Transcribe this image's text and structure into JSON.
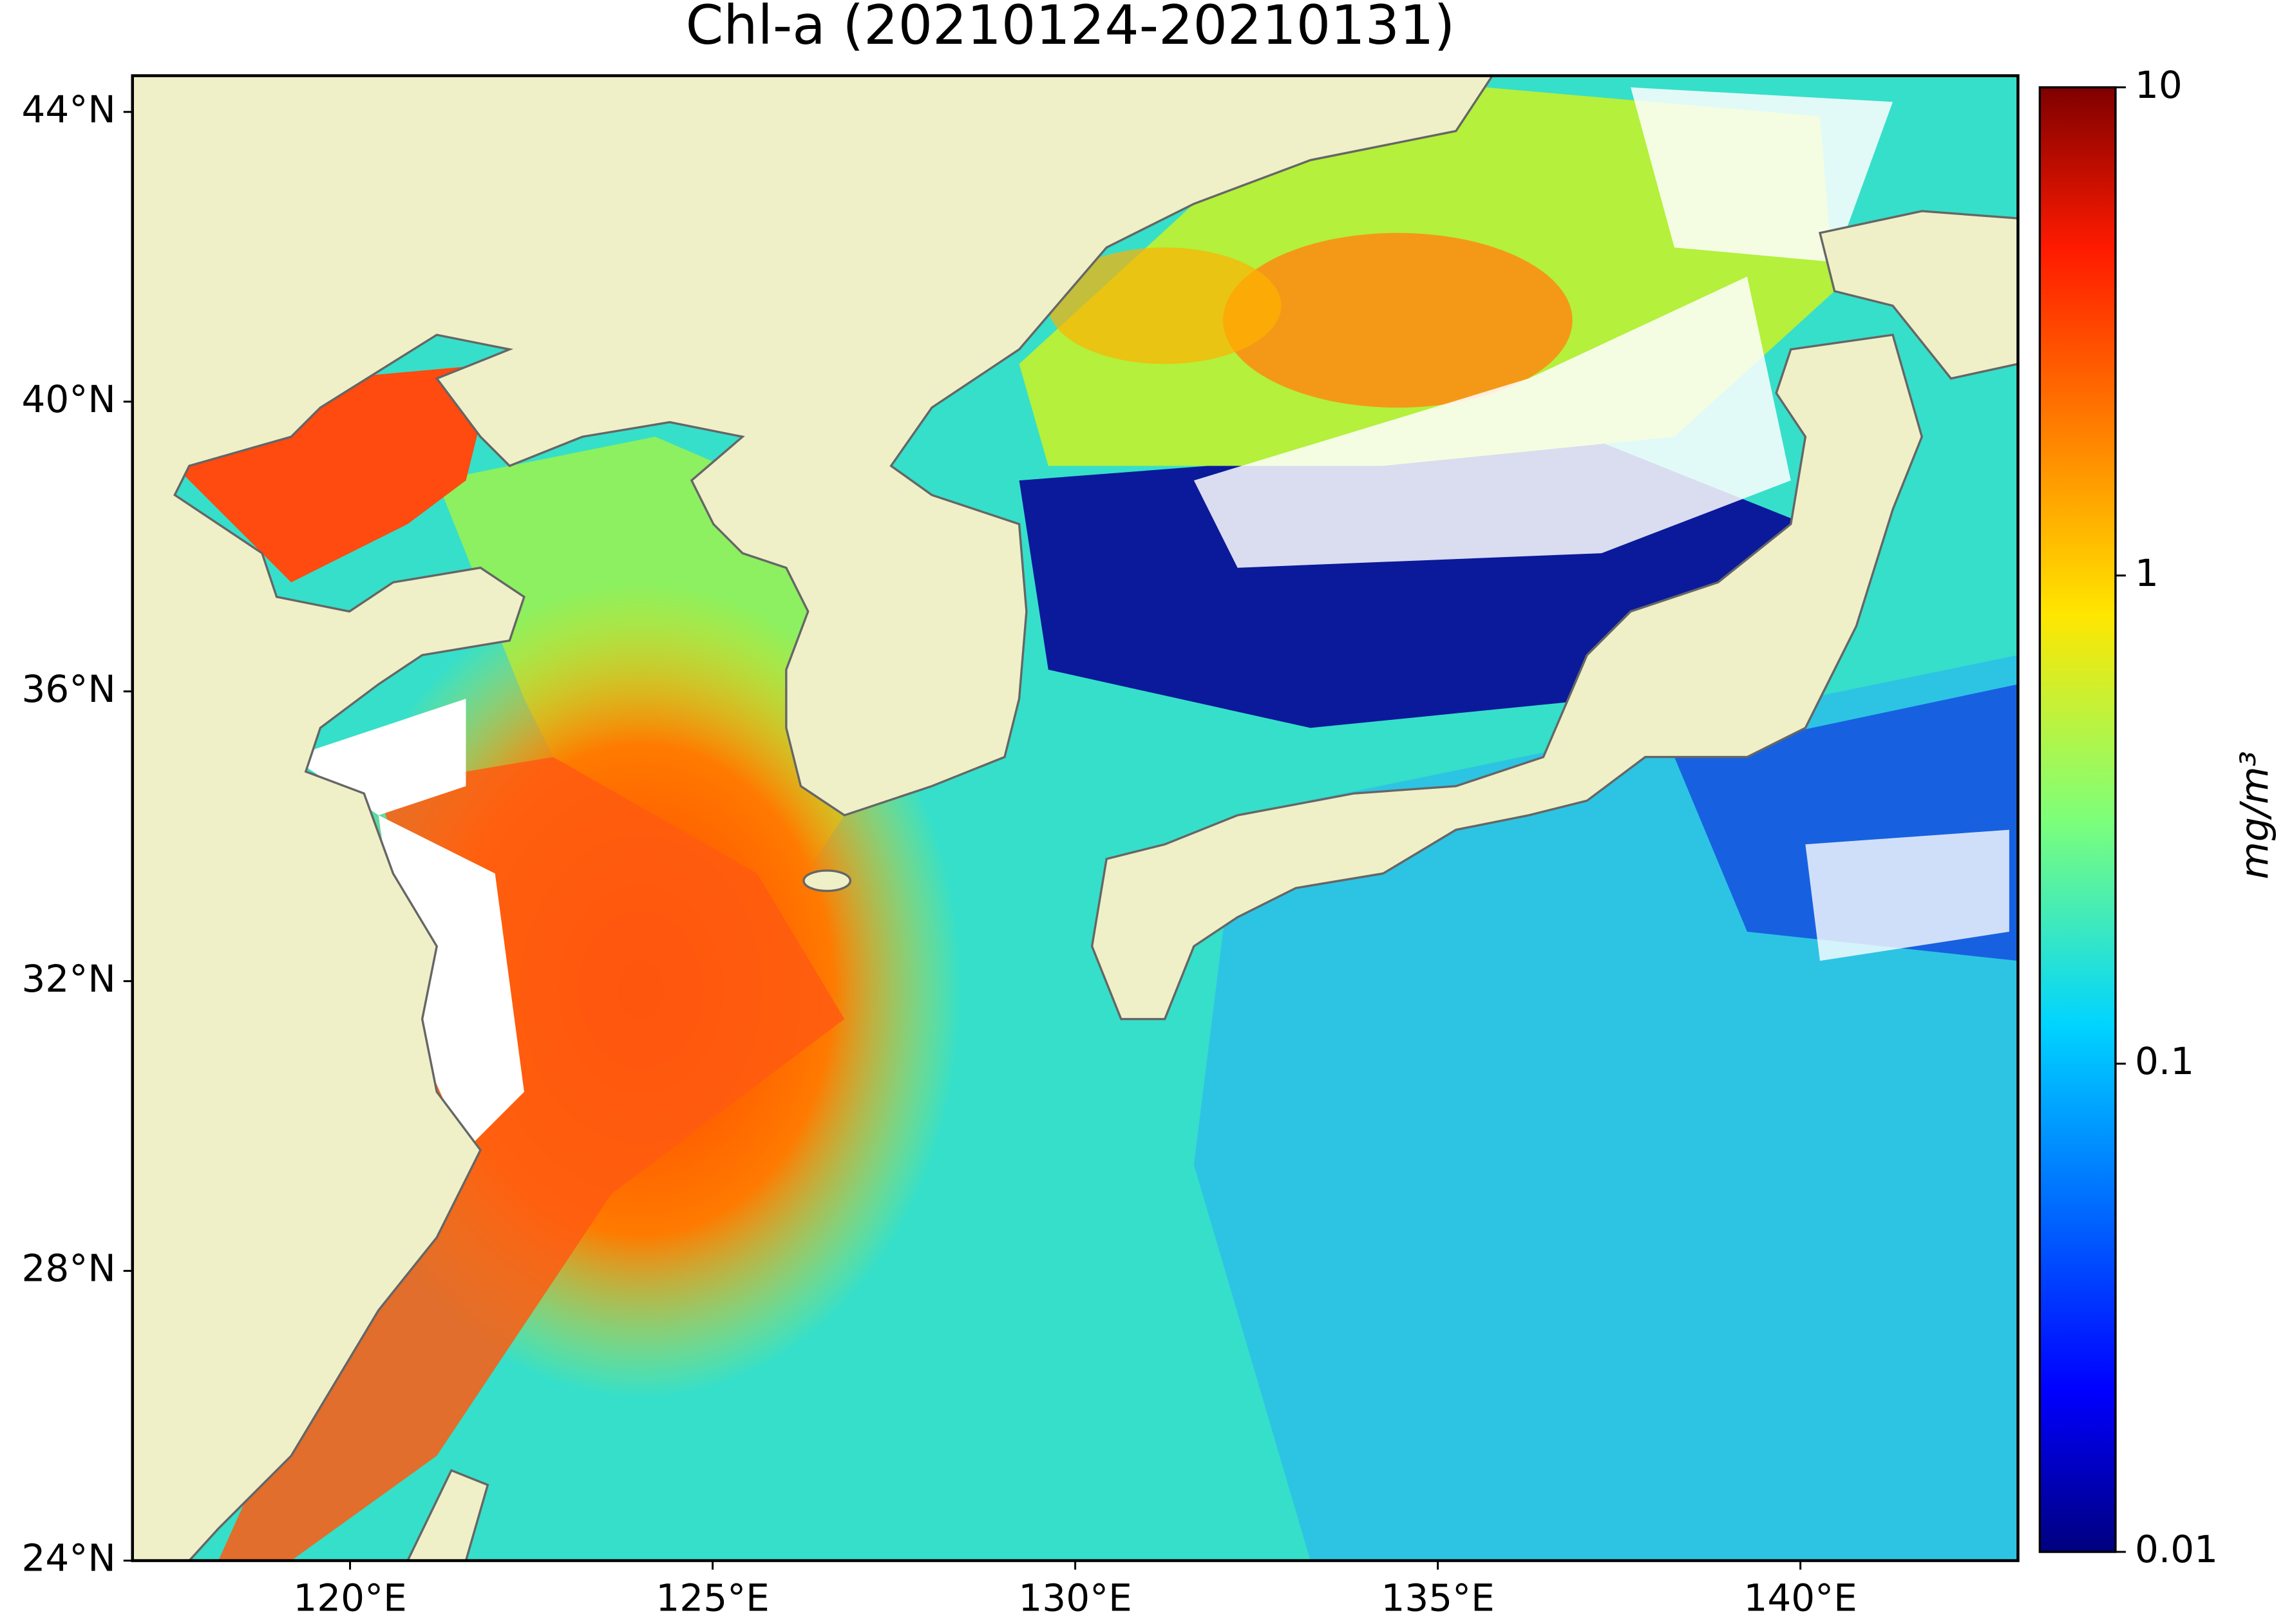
{
  "chart_data": {
    "type": "map",
    "title": "Chl-a (20210124-20210131)",
    "xlim": [
      117,
      143
    ],
    "ylim": [
      24,
      44.5
    ],
    "xticks": [
      {
        "value": 120,
        "label": "120°E"
      },
      {
        "value": 125,
        "label": "125°E"
      },
      {
        "value": 130,
        "label": "130°E"
      },
      {
        "value": 135,
        "label": "135°E"
      },
      {
        "value": 140,
        "label": "140°E"
      }
    ],
    "yticks": [
      {
        "value": 24,
        "label": "24°N"
      },
      {
        "value": 28,
        "label": "28°N"
      },
      {
        "value": 32,
        "label": "32°N"
      },
      {
        "value": 36,
        "label": "36°N"
      },
      {
        "value": 40,
        "label": "40°N"
      },
      {
        "value": 44,
        "label": "44°N"
      }
    ],
    "colorbar": {
      "label": "mg/m³",
      "scale": "log",
      "lim": [
        0.01,
        10
      ],
      "ticks": [
        0.01,
        0.1,
        1,
        10
      ],
      "colormap": "jet"
    }
  }
}
